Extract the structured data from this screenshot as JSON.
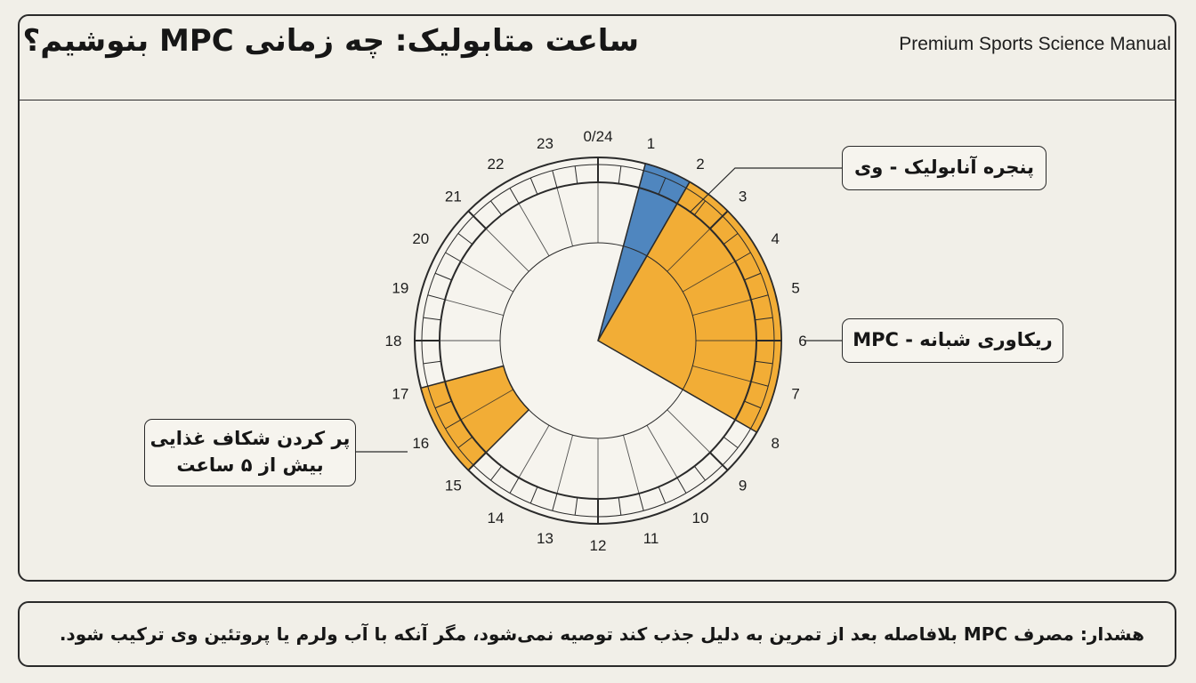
{
  "header": {
    "title": "ساعت متابولیک: چه زمانی MPC بنوشیم؟",
    "subtitle": "Premium Sports Science Manual"
  },
  "clock": {
    "hour_labels": [
      "0/24",
      "1",
      "2",
      "3",
      "4",
      "5",
      "6",
      "7",
      "8",
      "9",
      "10",
      "11",
      "12",
      "13",
      "14",
      "15",
      "16",
      "17",
      "18",
      "19",
      "20",
      "21",
      "22",
      "23"
    ],
    "segments": [
      {
        "name": "whey-window",
        "start_hour": 1,
        "end_hour": 2,
        "color": "#4f86bf",
        "radius": "full"
      },
      {
        "name": "mpc-recovery",
        "start_hour": 2,
        "end_hour": 8,
        "color": "#f2ad36",
        "radius": "full"
      },
      {
        "name": "fill-gap",
        "start_hour": 15,
        "end_hour": 17,
        "color": "#f2ad36",
        "radius": "ring"
      }
    ],
    "colors": {
      "blue": "#4f86bf",
      "orange": "#f2ad36",
      "line": "#2a2a2a",
      "background": "#f6f4ee"
    }
  },
  "callouts": {
    "whey": "پنجره آنابولیک - وی",
    "mpc": "ریکاوری شبانه - MPC",
    "gap_line1": "پر کردن شکاف غذایی",
    "gap_line2": "بیش از ۵ ساعت"
  },
  "warning": {
    "label": "هشدار:",
    "text": " مصرف MPC بلافاصله بعد از تمرین به دلیل جذب کند توصیه نمی‌شود، مگر آنکه با آب ولرم یا پروتئین وی ترکیب شود."
  }
}
